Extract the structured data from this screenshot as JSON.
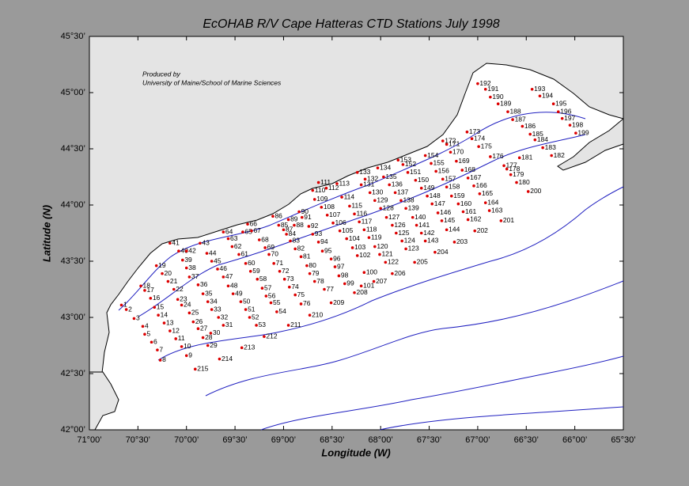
{
  "chart_data": {
    "type": "station-map",
    "title": "EcOHAB  R/V Cape Hatteras  CTD Stations July 1998",
    "annotation": [
      "Produced by",
      "University of Maine/School of Marine Sciences"
    ],
    "xlabel": "Longitude (W)",
    "ylabel": "Latitude (N)",
    "xlim": [
      71,
      65.5
    ],
    "ylim": [
      42,
      45.5
    ],
    "xticks": [
      {
        "value": 71,
        "label": "71°00’"
      },
      {
        "value": 70.5,
        "label": "70°30’"
      },
      {
        "value": 70,
        "label": "70°00’"
      },
      {
        "value": 69.5,
        "label": "69°30’"
      },
      {
        "value": 69,
        "label": "69°00’"
      },
      {
        "value": 68.5,
        "label": "68°30’"
      },
      {
        "value": 68,
        "label": "68°00’"
      },
      {
        "value": 67.5,
        "label": "67°30’"
      },
      {
        "value": 67,
        "label": "67°00’"
      },
      {
        "value": 66.5,
        "label": "66°30’"
      },
      {
        "value": 66,
        "label": "66°00’"
      },
      {
        "value": 65.5,
        "label": "65°30’"
      }
    ],
    "yticks": [
      {
        "value": 42,
        "label": "42°00’"
      },
      {
        "value": 42.5,
        "label": "42°30’"
      },
      {
        "value": 43,
        "label": "43°00’"
      },
      {
        "value": 43.5,
        "label": "43°30’"
      },
      {
        "value": 44,
        "label": "44°00’"
      },
      {
        "value": 44.5,
        "label": "44°30’"
      },
      {
        "value": 45,
        "label": "45°00’"
      },
      {
        "value": 45.5,
        "label": "45°30’"
      }
    ],
    "stations": {
      "color": "#dd0000",
      "ids": [
        1,
        2,
        3,
        4,
        5,
        6,
        7,
        8,
        9,
        10,
        11,
        12,
        13,
        14,
        15,
        16,
        17,
        18,
        19,
        20,
        21,
        22,
        23,
        24,
        25,
        26,
        27,
        28,
        29,
        30,
        31,
        32,
        33,
        34,
        35,
        36,
        37,
        38,
        39,
        40,
        41,
        42,
        43,
        44,
        45,
        46,
        47,
        48,
        49,
        50,
        51,
        52,
        53,
        54,
        55,
        56,
        57,
        58,
        59,
        60,
        61,
        62,
        63,
        64,
        65,
        66,
        67,
        68,
        69,
        70,
        71,
        72,
        73,
        74,
        75,
        76,
        77,
        78,
        79,
        80,
        81,
        82,
        83,
        84,
        85,
        86,
        87,
        88,
        89,
        90,
        91,
        92,
        93,
        94,
        95,
        96,
        97,
        98,
        99,
        100,
        101,
        102,
        103,
        104,
        105,
        106,
        107,
        108,
        109,
        110,
        111,
        112,
        113,
        114,
        115,
        116,
        117,
        118,
        119,
        120,
        121,
        122,
        123,
        124,
        125,
        126,
        127,
        128,
        129,
        130,
        131,
        132,
        133,
        134,
        135,
        136,
        137,
        138,
        139,
        140,
        141,
        142,
        143,
        144,
        145,
        146,
        147,
        148,
        149,
        150,
        151,
        152,
        153,
        154,
        155,
        156,
        157,
        158,
        159,
        160,
        161,
        162,
        163,
        164,
        165,
        166,
        167,
        168,
        169,
        170,
        171,
        172,
        173,
        174,
        175,
        176,
        177,
        178,
        179,
        180,
        181,
        182,
        183,
        184,
        185,
        186,
        187,
        188,
        189,
        190,
        191,
        192,
        193,
        194,
        195,
        196,
        197,
        198,
        199,
        200,
        201,
        202,
        203,
        204,
        205,
        206,
        207,
        208,
        209,
        210,
        211,
        212,
        213,
        214,
        215
      ],
      "lon": [
        70.67,
        70.62,
        70.54,
        70.45,
        70.43,
        70.36,
        70.3,
        70.27,
        70.0,
        70.05,
        70.11,
        70.17,
        70.23,
        70.29,
        70.33,
        70.37,
        70.43,
        70.47,
        70.31,
        70.25,
        70.19,
        70.13,
        70.09,
        70.05,
        69.97,
        69.93,
        69.88,
        69.83,
        69.78,
        69.75,
        69.62,
        69.67,
        69.74,
        69.78,
        69.83,
        69.88,
        69.97,
        70.0,
        70.04,
        70.08,
        70.17,
        70.0,
        69.86,
        69.79,
        69.74,
        69.68,
        69.62,
        69.57,
        69.52,
        69.44,
        69.39,
        69.35,
        69.28,
        69.07,
        69.13,
        69.18,
        69.22,
        69.27,
        69.34,
        69.39,
        69.46,
        69.53,
        69.57,
        69.62,
        69.42,
        69.37,
        69.33,
        69.25,
        69.19,
        69.15,
        69.1,
        69.04,
        68.99,
        68.94,
        68.88,
        68.82,
        68.58,
        68.68,
        68.73,
        68.76,
        68.82,
        68.88,
        68.93,
        68.97,
        69.05,
        69.11,
        69.0,
        68.89,
        68.95,
        68.84,
        68.81,
        68.74,
        68.7,
        68.64,
        68.6,
        68.51,
        68.47,
        68.43,
        68.37,
        68.17,
        68.2,
        68.24,
        68.29,
        68.35,
        68.42,
        68.49,
        68.55,
        68.61,
        68.68,
        68.7,
        68.64,
        68.56,
        68.45,
        68.4,
        68.32,
        68.27,
        68.22,
        68.17,
        68.12,
        68.06,
        68.01,
        67.95,
        67.74,
        67.78,
        67.84,
        67.88,
        67.94,
        68.0,
        68.06,
        68.11,
        68.2,
        68.16,
        68.24,
        68.03,
        67.97,
        67.91,
        67.85,
        67.79,
        67.74,
        67.67,
        67.63,
        67.58,
        67.54,
        67.32,
        67.37,
        67.41,
        67.47,
        67.52,
        67.58,
        67.64,
        67.72,
        67.77,
        67.82,
        67.54,
        67.48,
        67.43,
        67.36,
        67.32,
        67.27,
        67.2,
        67.15,
        67.1,
        66.88,
        66.92,
        66.98,
        67.04,
        67.1,
        67.16,
        67.22,
        67.28,
        67.32,
        67.36,
        67.11,
        67.06,
        66.99,
        66.87,
        66.73,
        66.7,
        66.66,
        66.6,
        66.57,
        66.24,
        66.33,
        66.41,
        66.46,
        66.54,
        66.64,
        66.69,
        66.79,
        66.87,
        66.92,
        67.0,
        66.44,
        66.36,
        66.22,
        66.17,
        66.13,
        66.05,
        65.99,
        66.48,
        66.76,
        67.03,
        67.24,
        67.44,
        67.65,
        67.88,
        68.07,
        68.27,
        68.51,
        68.73,
        68.95,
        69.2,
        69.43,
        69.66,
        69.91
      ],
      "lat": [
        43.11,
        43.07,
        42.99,
        42.92,
        42.85,
        42.78,
        42.71,
        42.62,
        42.66,
        42.74,
        42.81,
        42.88,
        42.95,
        43.02,
        43.09,
        43.17,
        43.24,
        43.28,
        43.46,
        43.39,
        43.32,
        43.25,
        43.16,
        43.11,
        43.04,
        42.96,
        42.9,
        42.82,
        42.75,
        42.86,
        42.93,
        43.0,
        43.07,
        43.14,
        43.21,
        43.29,
        43.36,
        43.44,
        43.51,
        43.59,
        43.66,
        43.59,
        43.66,
        43.57,
        43.5,
        43.43,
        43.36,
        43.28,
        43.21,
        43.14,
        43.07,
        43.0,
        42.93,
        43.05,
        43.13,
        43.19,
        43.26,
        43.34,
        43.41,
        43.48,
        43.56,
        43.63,
        43.7,
        43.76,
        43.76,
        43.83,
        43.77,
        43.69,
        43.62,
        43.56,
        43.48,
        43.41,
        43.34,
        43.27,
        43.2,
        43.12,
        43.25,
        43.32,
        43.39,
        43.46,
        43.54,
        43.61,
        43.68,
        43.74,
        43.82,
        43.9,
        43.78,
        43.82,
        43.87,
        43.94,
        43.89,
        43.81,
        43.74,
        43.67,
        43.59,
        43.52,
        43.45,
        43.37,
        43.3,
        43.4,
        43.28,
        43.55,
        43.62,
        43.7,
        43.77,
        43.84,
        43.91,
        43.98,
        44.05,
        44.13,
        44.2,
        44.15,
        44.19,
        44.07,
        43.99,
        43.92,
        43.85,
        43.78,
        43.71,
        43.63,
        43.56,
        43.49,
        43.61,
        43.68,
        43.75,
        43.82,
        43.89,
        43.97,
        44.04,
        44.11,
        44.18,
        44.23,
        44.29,
        44.33,
        44.25,
        44.18,
        44.11,
        44.04,
        43.97,
        43.89,
        43.82,
        43.75,
        43.68,
        43.78,
        43.86,
        43.93,
        44.01,
        44.08,
        44.15,
        44.22,
        44.29,
        44.36,
        44.4,
        44.44,
        44.37,
        44.3,
        44.23,
        44.16,
        44.08,
        44.01,
        43.94,
        43.87,
        43.95,
        44.02,
        44.1,
        44.17,
        44.24,
        44.31,
        44.39,
        44.47,
        44.54,
        44.57,
        44.65,
        44.59,
        44.52,
        44.43,
        44.35,
        44.32,
        44.27,
        44.2,
        44.42,
        44.44,
        44.51,
        44.58,
        44.63,
        44.7,
        44.76,
        44.83,
        44.9,
        44.96,
        45.03,
        45.08,
        45.03,
        44.97,
        44.9,
        44.83,
        44.77,
        44.71,
        44.64,
        44.12,
        43.86,
        43.77,
        43.67,
        43.58,
        43.49,
        43.39,
        43.32,
        43.22,
        43.13,
        43.02,
        42.93,
        42.83,
        42.73,
        42.63,
        42.54
      ]
    }
  }
}
